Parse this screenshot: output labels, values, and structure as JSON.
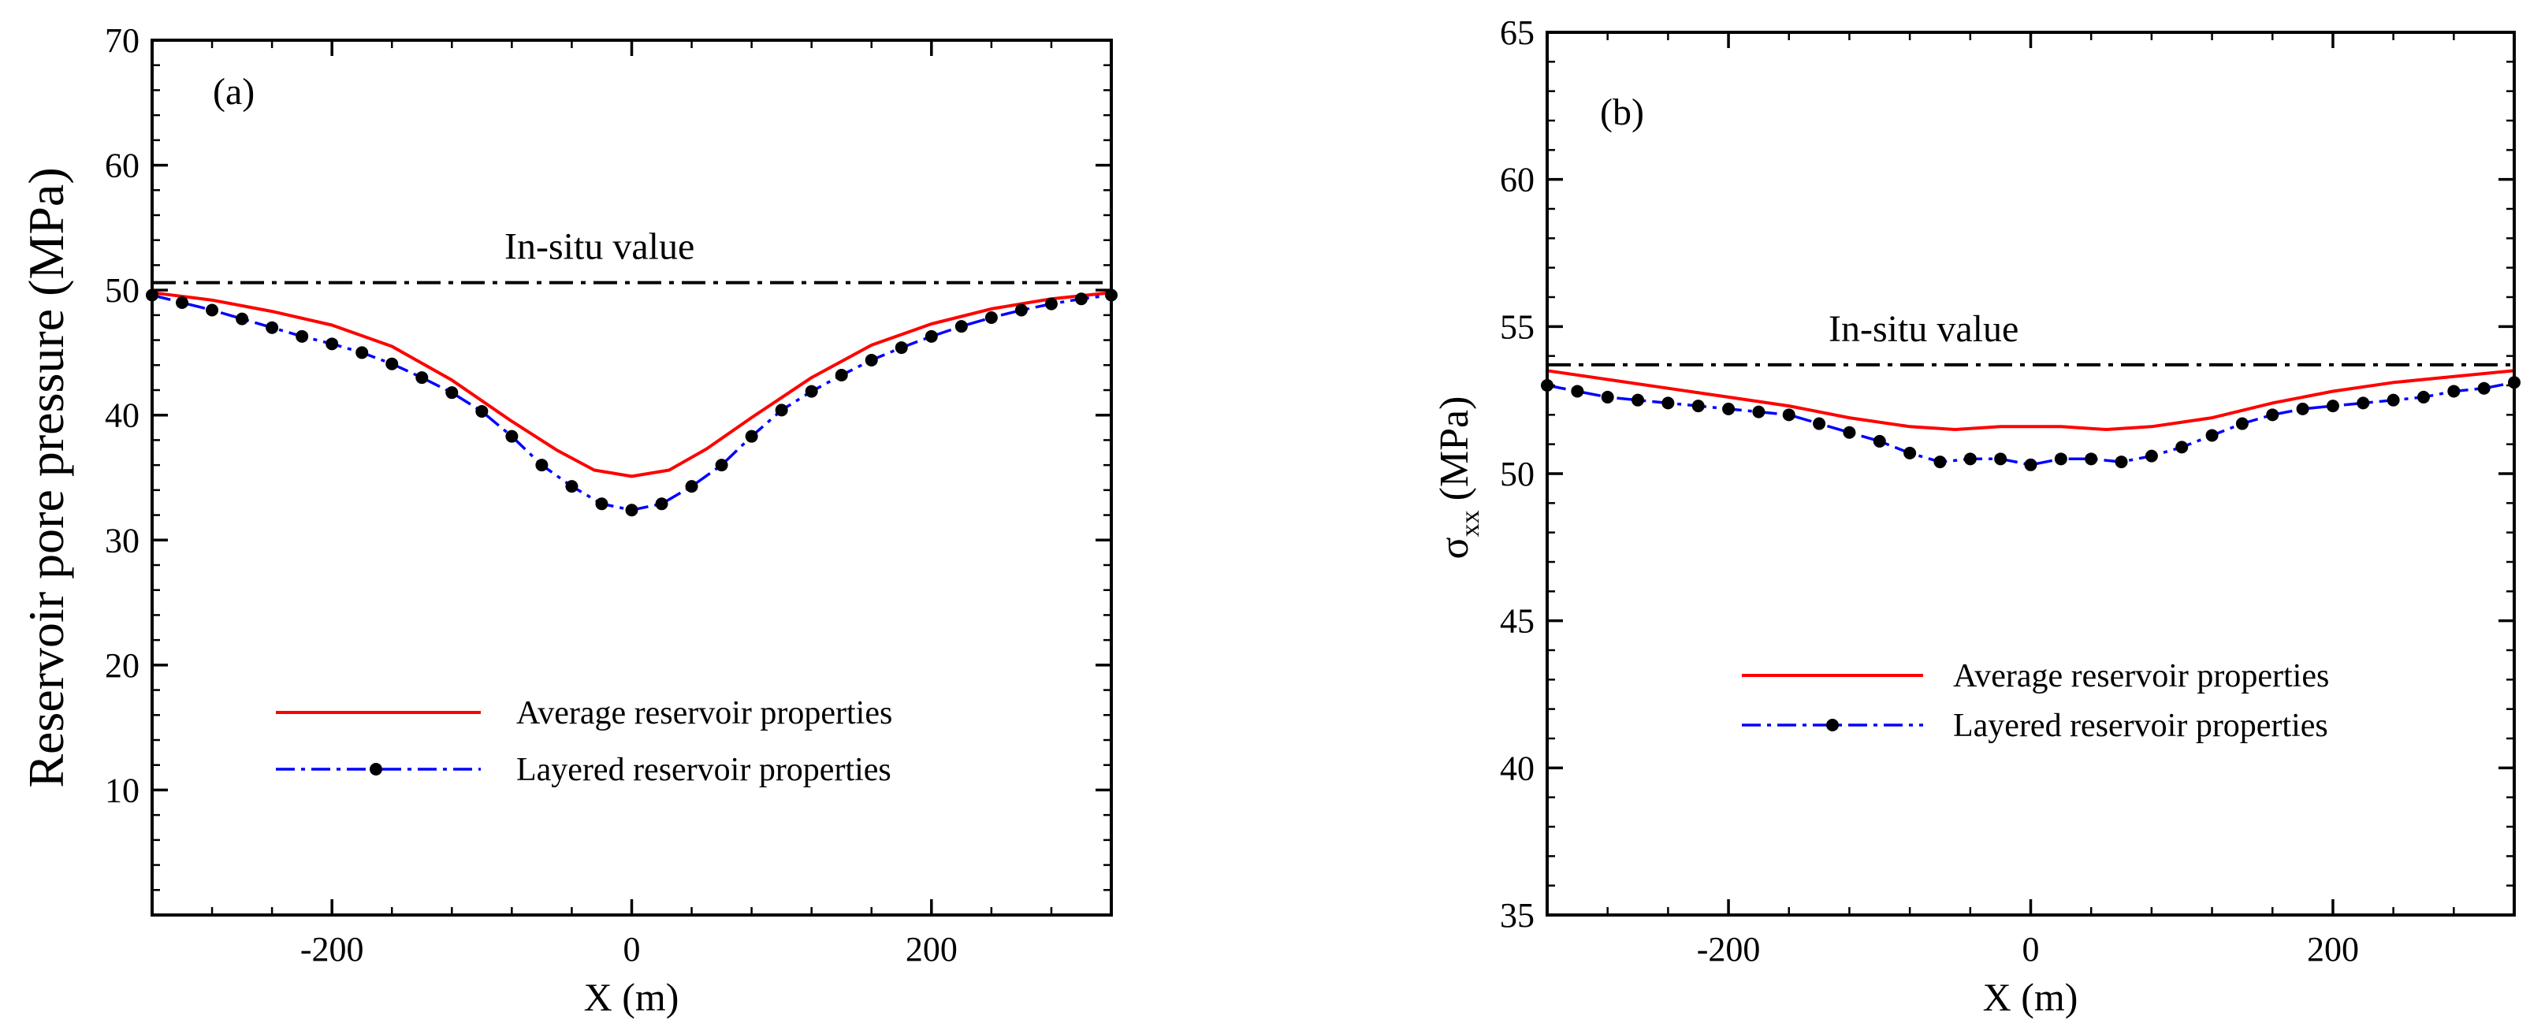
{
  "chart_data": [
    {
      "type": "line",
      "panel": "(a)",
      "xlabel": "X (m)",
      "ylabel": "Reservoir pore pressure (MPa)",
      "xlim": [
        -320,
        320
      ],
      "ylim": [
        0,
        70
      ],
      "xticks": [
        -200,
        0,
        200
      ],
      "xtick_labels": [
        "-200",
        "0",
        "200"
      ],
      "yticks": [
        10,
        20,
        30,
        40,
        50,
        60,
        70
      ],
      "ytick_labels": [
        "10",
        "20",
        "30",
        "40",
        "50",
        "60",
        "70"
      ],
      "reference_line": {
        "label": "In-situ value",
        "y": 50.6
      },
      "series": [
        {
          "name": "Average reservoir properties",
          "color": "#ff0000",
          "x": [
            -320,
            -280,
            -240,
            -200,
            -160,
            -120,
            -80,
            -50,
            -25,
            0,
            25,
            50,
            80,
            120,
            160,
            200,
            240,
            280,
            320
          ],
          "y": [
            49.8,
            49.2,
            48.3,
            47.2,
            45.5,
            42.8,
            39.5,
            37.2,
            35.6,
            35.1,
            35.6,
            37.3,
            39.8,
            43.0,
            45.6,
            47.3,
            48.5,
            49.3,
            49.8
          ]
        },
        {
          "name": "Layered reservoir properties",
          "color": "#0000ff",
          "marker_color": "#000000",
          "x": [
            -320,
            -300,
            -280,
            -260,
            -240,
            -220,
            -200,
            -180,
            -160,
            -140,
            -120,
            -100,
            -80,
            -60,
            -40,
            -20,
            0,
            20,
            40,
            60,
            80,
            100,
            120,
            140,
            160,
            180,
            200,
            220,
            240,
            260,
            280,
            300,
            320
          ],
          "y": [
            49.6,
            49.0,
            48.4,
            47.7,
            47.0,
            46.3,
            45.7,
            45.0,
            44.1,
            43.0,
            41.8,
            40.3,
            38.3,
            36.0,
            34.3,
            32.9,
            32.4,
            32.9,
            34.3,
            36.0,
            38.3,
            40.4,
            41.9,
            43.2,
            44.4,
            45.4,
            46.3,
            47.1,
            47.8,
            48.4,
            48.9,
            49.3,
            49.6
          ]
        }
      ]
    },
    {
      "type": "line",
      "panel": "(b)",
      "xlabel": "X (m)",
      "ylabel": "σ",
      "ylabel_sub": "xx",
      "ylabel_unit": "(MPa)",
      "xlim": [
        -320,
        320
      ],
      "ylim": [
        35,
        65
      ],
      "xticks": [
        -200,
        0,
        200
      ],
      "xtick_labels": [
        "-200",
        "0",
        "200"
      ],
      "yticks": [
        35,
        40,
        45,
        50,
        55,
        60,
        65
      ],
      "ytick_labels": [
        "35",
        "40",
        "45",
        "50",
        "55",
        "60",
        "65"
      ],
      "reference_line": {
        "label": "In-situ value",
        "y": 53.7
      },
      "series": [
        {
          "name": "Average reservoir properties",
          "color": "#ff0000",
          "x": [
            -320,
            -280,
            -240,
            -200,
            -160,
            -120,
            -80,
            -50,
            -20,
            0,
            20,
            50,
            80,
            120,
            160,
            200,
            240,
            280,
            320
          ],
          "y": [
            53.5,
            53.2,
            52.9,
            52.6,
            52.3,
            51.9,
            51.6,
            51.5,
            51.6,
            51.6,
            51.6,
            51.5,
            51.6,
            51.9,
            52.4,
            52.8,
            53.1,
            53.3,
            53.5
          ]
        },
        {
          "name": "Layered reservoir properties",
          "color": "#0000ff",
          "marker_color": "#000000",
          "x": [
            -320,
            -300,
            -280,
            -260,
            -240,
            -220,
            -200,
            -180,
            -160,
            -140,
            -120,
            -100,
            -80,
            -60,
            -40,
            -20,
            0,
            20,
            40,
            60,
            80,
            100,
            120,
            140,
            160,
            180,
            200,
            220,
            240,
            260,
            280,
            300,
            320
          ],
          "y": [
            53.0,
            52.8,
            52.6,
            52.5,
            52.4,
            52.3,
            52.2,
            52.1,
            52.0,
            51.7,
            51.4,
            51.1,
            50.7,
            50.4,
            50.5,
            50.5,
            50.3,
            50.5,
            50.5,
            50.4,
            50.6,
            50.9,
            51.3,
            51.7,
            52.0,
            52.2,
            52.3,
            52.4,
            52.5,
            52.6,
            52.8,
            52.9,
            53.1
          ]
        }
      ]
    }
  ]
}
